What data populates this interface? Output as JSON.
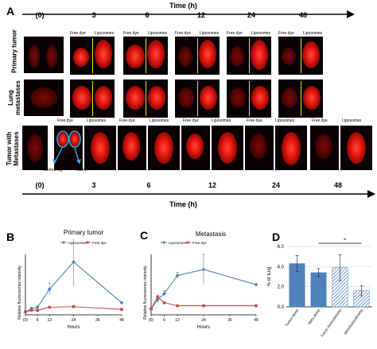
{
  "panel_labels": {
    "a": "A",
    "b": "B",
    "c": "C",
    "d": "D"
  },
  "panel_a": {
    "time_title_top": "Time (h)",
    "time_title_bottom": "Time (h)",
    "time_points": [
      "(0)",
      "3",
      "6",
      "12",
      "24",
      "48"
    ],
    "row_labels": {
      "primary": "Primary tumor",
      "lung": "Lung metastases",
      "tumor_mets": "Tumor with Metastases"
    },
    "caption_free_dye": "Free dye",
    "caption_liposomes": "Liposomes",
    "annotation_control_leg": "Control leg",
    "annotation_tumor": "Tumor"
  },
  "chart_data": [
    {
      "type": "line",
      "title": "Primary tumor",
      "xlabel": "Hours",
      "ylabel": "Relative fluorescence intensity",
      "x": [
        0,
        3,
        6,
        12,
        24,
        48
      ],
      "xticks": [
        "(0)",
        "6",
        "12",
        "24",
        "36",
        "48"
      ],
      "xtick_values": [
        0,
        6,
        12,
        24,
        36,
        48
      ],
      "ylim": [
        0,
        20
      ],
      "series": [
        {
          "name": "Liposomes",
          "color": "#4f81bd",
          "values": [
            1,
            2,
            2.5,
            8.5,
            17.5,
            4
          ],
          "err": [
            0,
            0.5,
            0.5,
            2,
            8,
            0
          ]
        },
        {
          "name": "Free dye",
          "color": "#c0504d",
          "values": [
            1,
            1.5,
            1.5,
            2.5,
            2.7,
            1.8
          ],
          "err": [
            0,
            0,
            0,
            0,
            0,
            0
          ]
        }
      ]
    },
    {
      "type": "line",
      "title": "Metastasis",
      "xlabel": "Hours",
      "ylabel": "Relative fluorescence intensity",
      "x": [
        0,
        3,
        6,
        12,
        24,
        48
      ],
      "xticks": [
        "(0)",
        "6",
        "12",
        "24",
        "36",
        "48"
      ],
      "xtick_values": [
        0,
        6,
        12,
        24,
        36,
        48
      ],
      "ylim": [
        0,
        10
      ],
      "series": [
        {
          "name": "Liposomes",
          "color": "#4f81bd",
          "values": [
            1,
            2.5,
            3.5,
            6.5,
            7.5,
            5
          ],
          "err": [
            0,
            0.5,
            0.5,
            0.5,
            2.5,
            0
          ]
        },
        {
          "name": "Free dye",
          "color": "#c0504d",
          "values": [
            1,
            3,
            2,
            1.5,
            1.5,
            1.5
          ],
          "err": [
            0,
            0,
            0,
            0,
            0,
            0
          ]
        }
      ]
    },
    {
      "type": "bar",
      "ylabel": "% of ID/g",
      "categories": [
        "Tumor alone",
        "Mets alone",
        "Tumor (tumor&mets)",
        "Mets(tumor&mets)"
      ],
      "values": [
        4.3,
        3.4,
        3.9,
        1.6
      ],
      "err": [
        0.8,
        0.4,
        1.3,
        0.5
      ],
      "yticks": [
        "0.0",
        "2.0",
        "4.0",
        "6.0"
      ],
      "ytick_values": [
        0,
        2,
        4,
        6
      ],
      "ylim": [
        0,
        6
      ],
      "fills": [
        "solid",
        "solid",
        "hatched",
        "hatched"
      ],
      "color": "#4f81bd",
      "significance_label": "*"
    }
  ]
}
